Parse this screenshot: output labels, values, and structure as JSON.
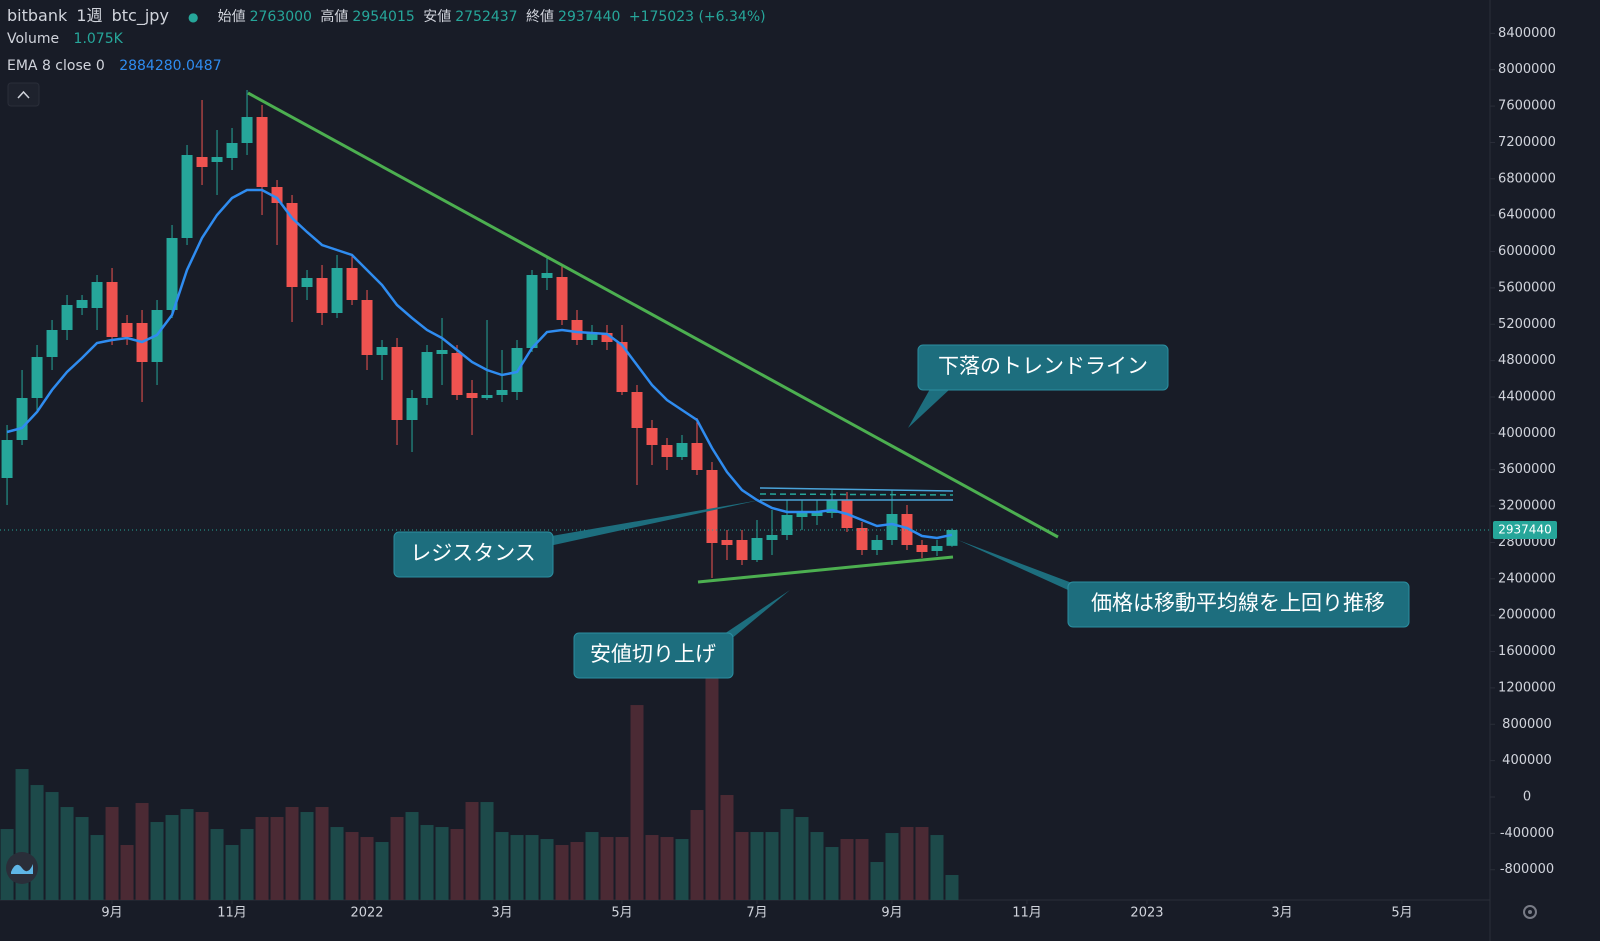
{
  "chart_data": {
    "type": "candlestick",
    "symbol": "bitbank",
    "interval": "1週",
    "pair": "btc_jpy",
    "ohlc_labels": [
      "始値",
      "高値",
      "安値",
      "終値"
    ],
    "change_label": "+175023 (+6.34%)",
    "categories": [
      null,
      null,
      null,
      null,
      null,
      null,
      null,
      null,
      null,
      null,
      null,
      null,
      null,
      null,
      null,
      null,
      null,
      null,
      null,
      null,
      null,
      null,
      null,
      null,
      null,
      null,
      null,
      null,
      null,
      null,
      null,
      null,
      null,
      null,
      null,
      null,
      null,
      null,
      null,
      null,
      null,
      null,
      null,
      null,
      null,
      null,
      null,
      null,
      null,
      null,
      null,
      null,
      null,
      null,
      null,
      null,
      null,
      null,
      null,
      null,
      null,
      null,
      null,
      null
    ],
    "open": [
      3509000,
      3927000,
      4389000,
      4840000,
      5137000,
      5379000,
      5379000,
      5665000,
      5214000,
      5214000,
      4785000,
      5357000,
      6149000,
      7040000,
      6985000,
      7029000,
      7194000,
      7480000,
      6710000,
      6534000,
      5610000,
      5709000,
      5324000,
      5819000,
      5467000,
      4862000,
      4950000,
      4147000,
      4389000,
      4873000,
      4884000,
      4444000,
      4389000,
      4422000,
      4455000,
      4939000,
      5709000,
      5720000,
      5247000,
      5027000,
      5104000,
      5005000,
      4455000,
      4059000,
      3872000,
      3740000,
      3894000,
      3597000,
      2827000,
      2827000,
      2607000,
      2827000,
      2882000,
      3080000,
      3091000,
      3124000,
      3267000,
      2959000,
      2717000,
      2827000,
      3113000,
      2772000,
      2706000,
      2763000
    ],
    "high": [
      4092000,
      4697000,
      4972000,
      5247000,
      5522000,
      5522000,
      5742000,
      5819000,
      5302000,
      5357000,
      5467000,
      6292000,
      7172000,
      7667000,
      7337000,
      7359000,
      7777000,
      7612000,
      6787000,
      6622000,
      5797000,
      5852000,
      5962000,
      5962000,
      5577000,
      5027000,
      5049000,
      4477000,
      4972000,
      5269000,
      4972000,
      4587000,
      5247000,
      4917000,
      5027000,
      5797000,
      5929000,
      5852000,
      5357000,
      5192000,
      5192000,
      5192000,
      4532000,
      4147000,
      3949000,
      3982000,
      4169000,
      3685000,
      2937000,
      2937000,
      3047000,
      3157000,
      3267000,
      3267000,
      3267000,
      3377000,
      3355000,
      3025000,
      2882000,
      3377000,
      3212000,
      2827000,
      2827000,
      2954015
    ],
    "low": [
      3212000,
      3872000,
      4257000,
      4697000,
      5027000,
      5302000,
      5137000,
      4972000,
      4972000,
      4345000,
      4532000,
      5269000,
      6072000,
      6732000,
      6622000,
      6897000,
      7062000,
      6402000,
      6072000,
      5225000,
      5467000,
      5192000,
      5269000,
      5412000,
      4697000,
      4587000,
      3872000,
      3795000,
      4312000,
      4532000,
      4367000,
      3982000,
      4367000,
      4345000,
      4367000,
      4895000,
      5577000,
      5192000,
      4972000,
      4972000,
      4917000,
      4422000,
      3432000,
      3652000,
      3597000,
      3707000,
      3542000,
      2409000,
      2607000,
      2552000,
      2585000,
      2662000,
      2827000,
      2937000,
      2992000,
      3069000,
      2915000,
      2662000,
      2662000,
      2772000,
      2717000,
      2629000,
      2651000,
      2752437
    ],
    "close": [
      3927000,
      4389000,
      4840000,
      5137000,
      5412000,
      5467000,
      5665000,
      5060000,
      5060000,
      4785000,
      5357000,
      6149000,
      7062000,
      6930000,
      7040000,
      7194000,
      7480000,
      6710000,
      6534000,
      5610000,
      5709000,
      5324000,
      5819000,
      5467000,
      4862000,
      4950000,
      4147000,
      4389000,
      4895000,
      4917000,
      4422000,
      4389000,
      4422000,
      4477000,
      4939000,
      5742000,
      5764000,
      5247000,
      5027000,
      5104000,
      5005000,
      4455000,
      4059000,
      3872000,
      3740000,
      3894000,
      3597000,
      2794000,
      2772000,
      2607000,
      2849000,
      2882000,
      3102000,
      3124000,
      3135000,
      3267000,
      2959000,
      2717000,
      2827000,
      3113000,
      2772000,
      2695000,
      2761000,
      2937440
    ],
    "up_color": "#26a69a",
    "down_color": "#ef5350",
    "ema": {
      "name": "EMA 8 close 0",
      "color": "#2f8cf0",
      "values": [
        4015000,
        4059000,
        4235000,
        4477000,
        4675000,
        4829000,
        4994000,
        5027000,
        5049000,
        5005000,
        5082000,
        5302000,
        5797000,
        6149000,
        6402000,
        6589000,
        6677000,
        6677000,
        6589000,
        6369000,
        6215000,
        6072000,
        6017000,
        5962000,
        5797000,
        5632000,
        5412000,
        5269000,
        5137000,
        5049000,
        4917000,
        4785000,
        4697000,
        4642000,
        4675000,
        4939000,
        5115000,
        5137000,
        5115000,
        5104000,
        5093000,
        4972000,
        4752000,
        4532000,
        4367000,
        4257000,
        4147000,
        3839000,
        3575000,
        3377000,
        3267000,
        3179000,
        3135000,
        3135000,
        3135000,
        3157000,
        3113000,
        3047000,
        2981000,
        3003000,
        2959000,
        2871000,
        2849000,
        2884280.0487
      ]
    },
    "volume": {
      "name": "Volume",
      "up_color": "#1d4a4a",
      "down_color": "#4b2a34",
      "lim": [
        0,
        10000
      ],
      "last_value_label": "1.075K",
      "values": [
        3053,
        5633,
        4945,
        4644,
        3999,
        3569,
        2795,
        3999,
        2365,
        4171,
        3354,
        3655,
        3913,
        3784,
        3053,
        2365,
        3053,
        3569,
        3569,
        3999,
        3784,
        3999,
        3139,
        2924,
        2709,
        2494,
        3569,
        3784,
        3225,
        3139,
        3053,
        4214,
        4214,
        2924,
        2795,
        2795,
        2623,
        2365,
        2494,
        2924,
        2709,
        2709,
        8385,
        2795,
        2709,
        2623,
        3870,
        9589,
        4515,
        2924,
        2924,
        2924,
        3913,
        3569,
        2924,
        2279,
        2623,
        2623,
        1634,
        2881,
        3139,
        3139,
        2795,
        1075
      ]
    },
    "xlim": [
      -0.47,
      98.87
    ],
    "xticks": [
      {
        "value": 7,
        "label": "9月"
      },
      {
        "value": 15,
        "label": "11月"
      },
      {
        "value": 24,
        "label": "2022"
      },
      {
        "value": 33,
        "label": "3月"
      },
      {
        "value": 41,
        "label": "5月"
      },
      {
        "value": 50,
        "label": "7月"
      },
      {
        "value": 59,
        "label": "9月"
      },
      {
        "value": 68,
        "label": "11月"
      },
      {
        "value": 76,
        "label": "2023"
      },
      {
        "value": 85,
        "label": "3月"
      },
      {
        "value": 93,
        "label": "5月"
      }
    ],
    "ylim": [
      -1133000,
      8767000
    ],
    "yticks": [
      -800000,
      -400000,
      0,
      400000,
      800000,
      1200000,
      1600000,
      2000000,
      2400000,
      2800000,
      3200000,
      3600000,
      4000000,
      4400000,
      4800000,
      5200000,
      5600000,
      6000000,
      6400000,
      6800000,
      7200000,
      7600000,
      8000000,
      8400000
    ],
    "grid": false,
    "annotations": [
      "下落のトレンドライン",
      "レジスタンス",
      "価格は移動平均線を上回り推移",
      "安値切り上げ"
    ]
  }
}
